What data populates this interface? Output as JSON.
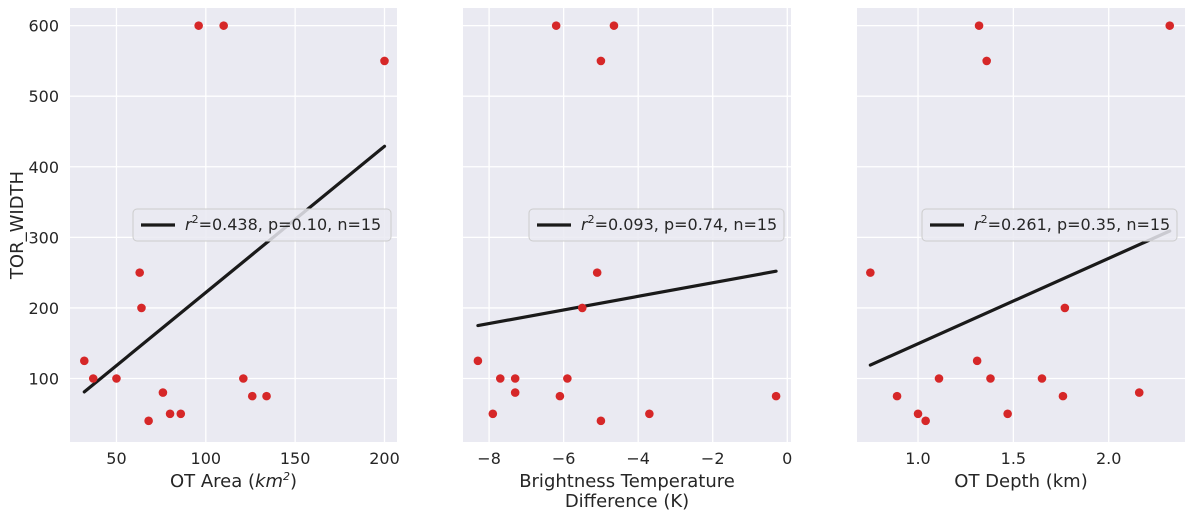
{
  "chart_data": [
    {
      "type": "scatter",
      "title": "",
      "xlabel": "OT Area",
      "xlabel_unit": "km",
      "xlabel_sup": "2",
      "ylabel": "TOR_WIDTH",
      "xlim": [
        24,
        207
      ],
      "ylim": [
        10,
        625
      ],
      "xticks": [
        50,
        100,
        150,
        200
      ],
      "xtick_labels": [
        "50",
        "100",
        "150",
        "200"
      ],
      "yticks": [
        100,
        200,
        300,
        400,
        500,
        600
      ],
      "ytick_labels": [
        "100",
        "200",
        "300",
        "400",
        "500",
        "600"
      ],
      "grid": true,
      "legend_position": "center-right",
      "legend": {
        "r2_symbol": "r",
        "r2_sup": "2",
        "text": "=0.438, p=0.10, n=15"
      },
      "points": [
        {
          "x": 32,
          "y": 125
        },
        {
          "x": 37,
          "y": 100
        },
        {
          "x": 50,
          "y": 100
        },
        {
          "x": 63,
          "y": 250
        },
        {
          "x": 64,
          "y": 200
        },
        {
          "x": 68,
          "y": 40
        },
        {
          "x": 76,
          "y": 80
        },
        {
          "x": 80,
          "y": 50
        },
        {
          "x": 86,
          "y": 50
        },
        {
          "x": 96,
          "y": 600
        },
        {
          "x": 110,
          "y": 600
        },
        {
          "x": 121,
          "y": 100
        },
        {
          "x": 126,
          "y": 75
        },
        {
          "x": 134,
          "y": 75
        },
        {
          "x": 200,
          "y": 550
        }
      ],
      "fit": {
        "x": [
          32,
          200
        ],
        "y": [
          81,
          429
        ]
      }
    },
    {
      "type": "scatter",
      "title": "",
      "xlabel": "Brightness Temperature",
      "xlabel_line2": "Difference (K)",
      "ylabel": "",
      "xlim": [
        -8.7,
        0.1
      ],
      "ylim": [
        10,
        625
      ],
      "xticks": [
        -8,
        -6,
        -4,
        -2,
        0
      ],
      "xtick_labels": [
        "−8",
        "−6",
        "−4",
        "−2",
        "0"
      ],
      "yticks": [
        100,
        200,
        300,
        400,
        500,
        600
      ],
      "grid": true,
      "legend_position": "center-right",
      "legend": {
        "r2_symbol": "r",
        "r2_sup": "2",
        "text": "=0.093, p=0.74, n=15"
      },
      "points": [
        {
          "x": -8.3,
          "y": 125
        },
        {
          "x": -7.9,
          "y": 50
        },
        {
          "x": -7.7,
          "y": 100
        },
        {
          "x": -7.3,
          "y": 100
        },
        {
          "x": -7.3,
          "y": 80
        },
        {
          "x": -6.2,
          "y": 600
        },
        {
          "x": -6.1,
          "y": 75
        },
        {
          "x": -5.9,
          "y": 100
        },
        {
          "x": -5.5,
          "y": 200
        },
        {
          "x": -5.1,
          "y": 250
        },
        {
          "x": -5.0,
          "y": 550
        },
        {
          "x": -5.0,
          "y": 40
        },
        {
          "x": -4.65,
          "y": 600
        },
        {
          "x": -3.7,
          "y": 50
        },
        {
          "x": -0.3,
          "y": 75
        }
      ],
      "fit": {
        "x": [
          -8.3,
          -0.3
        ],
        "y": [
          175,
          252
        ]
      }
    },
    {
      "type": "scatter",
      "title": "",
      "xlabel": "OT Depth (km)",
      "ylabel": "",
      "xlim": [
        0.68,
        2.4
      ],
      "ylim": [
        10,
        625
      ],
      "xticks": [
        1.0,
        1.5,
        2.0
      ],
      "xtick_labels": [
        "1.0",
        "1.5",
        "2.0"
      ],
      "yticks": [
        100,
        200,
        300,
        400,
        500,
        600
      ],
      "grid": true,
      "legend_position": "center-right",
      "legend": {
        "r2_symbol": "r",
        "r2_sup": "2",
        "text": "=0.261, p=0.35, n=15"
      },
      "points": [
        {
          "x": 0.75,
          "y": 250
        },
        {
          "x": 0.89,
          "y": 75
        },
        {
          "x": 1.0,
          "y": 50
        },
        {
          "x": 1.04,
          "y": 40
        },
        {
          "x": 1.11,
          "y": 100
        },
        {
          "x": 1.31,
          "y": 125
        },
        {
          "x": 1.32,
          "y": 600
        },
        {
          "x": 1.36,
          "y": 550
        },
        {
          "x": 1.38,
          "y": 100
        },
        {
          "x": 1.47,
          "y": 50
        },
        {
          "x": 1.65,
          "y": 100
        },
        {
          "x": 1.76,
          "y": 75
        },
        {
          "x": 1.77,
          "y": 200
        },
        {
          "x": 2.16,
          "y": 80
        },
        {
          "x": 2.32,
          "y": 600
        }
      ],
      "fit": {
        "x": [
          0.75,
          2.32
        ],
        "y": [
          119,
          309
        ]
      }
    }
  ],
  "colors": {
    "background": "#eaeaf2",
    "grid": "#ffffff",
    "point": "#d62728",
    "fit_line": "#1a1a1a",
    "text": "#262626"
  }
}
